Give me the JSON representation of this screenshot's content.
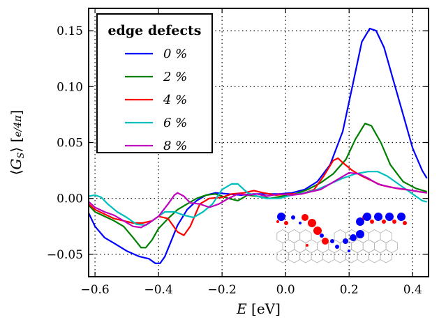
{
  "chart_data": {
    "type": "line",
    "xlabel": "E [eV]",
    "ylabel": "⟨G_S⟩ [e/4π]",
    "xlim": [
      -0.62,
      0.45
    ],
    "ylim": [
      -0.07,
      0.17
    ],
    "xticks": [
      -0.6,
      -0.4,
      -0.2,
      0.0,
      0.2,
      0.4
    ],
    "xtick_labels": [
      "−0.6",
      "−0.4",
      "−0.2",
      "0.0",
      "0.2",
      "0.4"
    ],
    "yticks": [
      -0.05,
      0.0,
      0.05,
      0.1,
      0.15
    ],
    "ytick_labels": [
      "−0.05",
      "0.00",
      "0.05",
      "0.10",
      "0.15"
    ],
    "grid": true,
    "legend": {
      "title": "edge defects",
      "placement": "top-left"
    },
    "series": [
      {
        "name": "0 %",
        "color": "#0000ff",
        "points": [
          [
            -0.62,
            -0.013
          ],
          [
            -0.6,
            -0.025
          ],
          [
            -0.57,
            -0.035
          ],
          [
            -0.54,
            -0.04
          ],
          [
            -0.5,
            -0.047
          ],
          [
            -0.46,
            -0.052
          ],
          [
            -0.43,
            -0.054
          ],
          [
            -0.41,
            -0.058
          ],
          [
            -0.395,
            -0.058
          ],
          [
            -0.38,
            -0.052
          ],
          [
            -0.36,
            -0.038
          ],
          [
            -0.34,
            -0.024
          ],
          [
            -0.31,
            -0.01
          ],
          [
            -0.28,
            -0.002
          ],
          [
            -0.25,
            0.003
          ],
          [
            -0.22,
            0.005
          ],
          [
            -0.18,
            0.004
          ],
          [
            -0.14,
            0.003
          ],
          [
            -0.1,
            0.004
          ],
          [
            -0.06,
            0.004
          ],
          [
            -0.02,
            0.004
          ],
          [
            0.02,
            0.005
          ],
          [
            0.06,
            0.008
          ],
          [
            0.1,
            0.015
          ],
          [
            0.14,
            0.03
          ],
          [
            0.18,
            0.06
          ],
          [
            0.21,
            0.1
          ],
          [
            0.24,
            0.14
          ],
          [
            0.265,
            0.152
          ],
          [
            0.285,
            0.15
          ],
          [
            0.31,
            0.135
          ],
          [
            0.34,
            0.105
          ],
          [
            0.37,
            0.075
          ],
          [
            0.4,
            0.045
          ],
          [
            0.43,
            0.025
          ],
          [
            0.445,
            0.018
          ]
        ]
      },
      {
        "name": "2 %",
        "color": "#008000",
        "points": [
          [
            -0.62,
            -0.006
          ],
          [
            -0.6,
            -0.012
          ],
          [
            -0.57,
            -0.016
          ],
          [
            -0.54,
            -0.02
          ],
          [
            -0.51,
            -0.025
          ],
          [
            -0.48,
            -0.035
          ],
          [
            -0.455,
            -0.044
          ],
          [
            -0.44,
            -0.044
          ],
          [
            -0.42,
            -0.037
          ],
          [
            -0.4,
            -0.027
          ],
          [
            -0.37,
            -0.018
          ],
          [
            -0.34,
            -0.01
          ],
          [
            -0.31,
            -0.005
          ],
          [
            -0.28,
            0.0
          ],
          [
            -0.25,
            0.003
          ],
          [
            -0.22,
            0.004
          ],
          [
            -0.18,
            0.0
          ],
          [
            -0.15,
            -0.002
          ],
          [
            -0.12,
            0.003
          ],
          [
            -0.09,
            0.002
          ],
          [
            -0.05,
            0.0
          ],
          [
            -0.01,
            0.002
          ],
          [
            0.03,
            0.004
          ],
          [
            0.07,
            0.008
          ],
          [
            0.11,
            0.014
          ],
          [
            0.15,
            0.022
          ],
          [
            0.19,
            0.035
          ],
          [
            0.22,
            0.053
          ],
          [
            0.25,
            0.067
          ],
          [
            0.27,
            0.065
          ],
          [
            0.3,
            0.05
          ],
          [
            0.33,
            0.03
          ],
          [
            0.37,
            0.015
          ],
          [
            0.41,
            0.009
          ],
          [
            0.445,
            0.006
          ]
        ]
      },
      {
        "name": "4 %",
        "color": "#ff0000",
        "points": [
          [
            -0.62,
            -0.005
          ],
          [
            -0.6,
            -0.01
          ],
          [
            -0.57,
            -0.014
          ],
          [
            -0.54,
            -0.018
          ],
          [
            -0.51,
            -0.02
          ],
          [
            -0.48,
            -0.022
          ],
          [
            -0.45,
            -0.022
          ],
          [
            -0.42,
            -0.02
          ],
          [
            -0.4,
            -0.016
          ],
          [
            -0.37,
            -0.018
          ],
          [
            -0.34,
            -0.03
          ],
          [
            -0.32,
            -0.033
          ],
          [
            -0.3,
            -0.025
          ],
          [
            -0.27,
            -0.005
          ],
          [
            -0.24,
            0.0
          ],
          [
            -0.2,
            0.001
          ],
          [
            -0.17,
            0.004
          ],
          [
            -0.13,
            0.005
          ],
          [
            -0.1,
            0.007
          ],
          [
            -0.07,
            0.005
          ],
          [
            -0.03,
            0.003
          ],
          [
            0.01,
            0.004
          ],
          [
            0.05,
            0.004
          ],
          [
            0.09,
            0.008
          ],
          [
            0.12,
            0.02
          ],
          [
            0.15,
            0.034
          ],
          [
            0.165,
            0.036
          ],
          [
            0.18,
            0.032
          ],
          [
            0.21,
            0.025
          ],
          [
            0.24,
            0.02
          ],
          [
            0.27,
            0.016
          ],
          [
            0.3,
            0.012
          ],
          [
            0.35,
            0.009
          ],
          [
            0.4,
            0.007
          ],
          [
            0.445,
            0.005
          ]
        ]
      },
      {
        "name": "6 %",
        "color": "#00bfbf",
        "points": [
          [
            -0.62,
            0.002
          ],
          [
            -0.6,
            0.003
          ],
          [
            -0.58,
            0.001
          ],
          [
            -0.56,
            -0.005
          ],
          [
            -0.53,
            -0.012
          ],
          [
            -0.5,
            -0.017
          ],
          [
            -0.47,
            -0.023
          ],
          [
            -0.44,
            -0.024
          ],
          [
            -0.41,
            -0.018
          ],
          [
            -0.38,
            -0.012
          ],
          [
            -0.35,
            -0.012
          ],
          [
            -0.32,
            -0.015
          ],
          [
            -0.29,
            -0.017
          ],
          [
            -0.26,
            -0.012
          ],
          [
            -0.23,
            -0.005
          ],
          [
            -0.2,
            0.008
          ],
          [
            -0.17,
            0.013
          ],
          [
            -0.15,
            0.013
          ],
          [
            -0.12,
            0.005
          ],
          [
            -0.09,
            0.002
          ],
          [
            -0.06,
            0.0
          ],
          [
            -0.02,
            0.0
          ],
          [
            0.02,
            0.003
          ],
          [
            0.06,
            0.005
          ],
          [
            0.1,
            0.008
          ],
          [
            0.14,
            0.013
          ],
          [
            0.18,
            0.018
          ],
          [
            0.22,
            0.022
          ],
          [
            0.26,
            0.024
          ],
          [
            0.29,
            0.024
          ],
          [
            0.32,
            0.02
          ],
          [
            0.36,
            0.012
          ],
          [
            0.4,
            0.004
          ],
          [
            0.43,
            -0.002
          ],
          [
            0.445,
            -0.003
          ]
        ]
      },
      {
        "name": "8 %",
        "color": "#bf00bf",
        "points": [
          [
            -0.62,
            -0.003
          ],
          [
            -0.6,
            -0.008
          ],
          [
            -0.57,
            -0.012
          ],
          [
            -0.54,
            -0.015
          ],
          [
            -0.51,
            -0.02
          ],
          [
            -0.48,
            -0.025
          ],
          [
            -0.455,
            -0.026
          ],
          [
            -0.43,
            -0.022
          ],
          [
            -0.4,
            -0.016
          ],
          [
            -0.37,
            -0.005
          ],
          [
            -0.35,
            0.003
          ],
          [
            -0.34,
            0.005
          ],
          [
            -0.32,
            0.002
          ],
          [
            -0.3,
            -0.004
          ],
          [
            -0.27,
            -0.005
          ],
          [
            -0.24,
            -0.008
          ],
          [
            -0.21,
            -0.005
          ],
          [
            -0.18,
            0.0
          ],
          [
            -0.15,
            0.004
          ],
          [
            -0.12,
            0.003
          ],
          [
            -0.09,
            0.004
          ],
          [
            -0.06,
            0.002
          ],
          [
            -0.02,
            0.004
          ],
          [
            0.02,
            0.003
          ],
          [
            0.05,
            0.004
          ],
          [
            0.08,
            0.006
          ],
          [
            0.11,
            0.008
          ],
          [
            0.14,
            0.013
          ],
          [
            0.17,
            0.018
          ],
          [
            0.2,
            0.023
          ],
          [
            0.23,
            0.022
          ],
          [
            0.26,
            0.018
          ],
          [
            0.29,
            0.013
          ],
          [
            0.33,
            0.01
          ],
          [
            0.38,
            0.008
          ],
          [
            0.42,
            0.006
          ],
          [
            0.445,
            0.005
          ]
        ]
      }
    ]
  }
}
